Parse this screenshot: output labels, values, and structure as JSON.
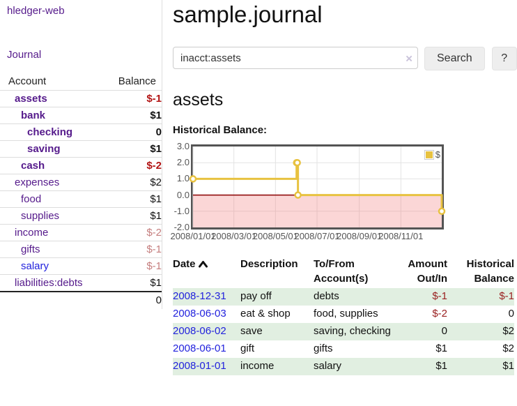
{
  "app": {
    "brand": "hledger-web"
  },
  "header": {
    "title": "sample.journal"
  },
  "search": {
    "value": "inacct:assets",
    "clear_icon": "×",
    "button_label": "Search",
    "help_label": "?"
  },
  "sidebar": {
    "journal_link": "Journal",
    "accounts_table": {
      "headers": [
        "Account",
        "Balance"
      ],
      "rows": [
        {
          "account": "assets",
          "indent": 1,
          "bold": true,
          "blue": false,
          "balance": "$-1",
          "balance_class": "neg-strong"
        },
        {
          "account": "bank",
          "indent": 2,
          "bold": true,
          "blue": false,
          "balance": "$1",
          "balance_class": ""
        },
        {
          "account": "checking",
          "indent": 3,
          "bold": true,
          "blue": false,
          "balance": "0",
          "balance_class": ""
        },
        {
          "account": "saving",
          "indent": 3,
          "bold": true,
          "blue": false,
          "balance": "$1",
          "balance_class": ""
        },
        {
          "account": "cash",
          "indent": 2,
          "bold": true,
          "blue": false,
          "balance": "$-2",
          "balance_class": "neg-strong"
        },
        {
          "account": "expenses",
          "indent": 1,
          "bold": false,
          "blue": false,
          "balance": "$2",
          "balance_class": ""
        },
        {
          "account": "food",
          "indent": 2,
          "bold": false,
          "blue": false,
          "balance": "$1",
          "balance_class": ""
        },
        {
          "account": "supplies",
          "indent": 2,
          "bold": false,
          "blue": false,
          "balance": "$1",
          "balance_class": ""
        },
        {
          "account": "income",
          "indent": 1,
          "bold": false,
          "blue": false,
          "balance": "$-2",
          "balance_class": "neg-soft"
        },
        {
          "account": "gifts",
          "indent": 2,
          "bold": false,
          "blue": false,
          "balance": "$-1",
          "balance_class": "neg-soft"
        },
        {
          "account": "salary",
          "indent": 2,
          "bold": false,
          "blue": true,
          "balance": "$-1",
          "balance_class": "neg-soft"
        },
        {
          "account": "liabilities:debts",
          "indent": 1,
          "bold": false,
          "blue": false,
          "balance": "$1",
          "balance_class": ""
        }
      ],
      "total": "0"
    }
  },
  "main": {
    "account_title": "assets",
    "chart_label": "Historical Balance:"
  },
  "chart_data": {
    "type": "line",
    "step": true,
    "title": "Historical Balance",
    "x_type": "date",
    "xlim": [
      "2008-01-01",
      "2008-12-31"
    ],
    "ylim": [
      -2,
      3
    ],
    "grid": true,
    "legend_position": "top-right",
    "x_ticks": [
      {
        "label": "2008/01/01",
        "date": "2008-01-01"
      },
      {
        "label": "2008/03/01",
        "date": "2008-03-01"
      },
      {
        "label": "2008/05/01",
        "date": "2008-05-01"
      },
      {
        "label": "2008/07/01",
        "date": "2008-07-01"
      },
      {
        "label": "2008/09/01",
        "date": "2008-09-01"
      },
      {
        "label": "2008/11/01",
        "date": "2008-11-01"
      }
    ],
    "y_ticks": [
      {
        "label": "3.0",
        "value": 3
      },
      {
        "label": "2.0",
        "value": 2
      },
      {
        "label": "1.0",
        "value": 1
      },
      {
        "label": "0.0",
        "value": 0
      },
      {
        "label": "-1.0",
        "value": -1
      },
      {
        "label": "-2.0",
        "value": -2
      }
    ],
    "series": [
      {
        "name": "$",
        "color": "#e8c240",
        "points": [
          [
            "2008-01-01",
            1
          ],
          [
            "2008-06-01",
            2
          ],
          [
            "2008-06-02",
            2
          ],
          [
            "2008-06-03",
            0
          ],
          [
            "2008-12-31",
            -1
          ]
        ]
      }
    ],
    "negative_region_fill": "#fbdada",
    "zero_line_color": "#8b0000"
  },
  "register_table": {
    "headers": {
      "date": "Date",
      "description": "Description",
      "accounts": "To/From Account(s)",
      "amount": "Amount Out/In",
      "balance": "Historical Balance"
    },
    "rows": [
      {
        "date": "2008-12-31",
        "description": "pay off",
        "accounts": "debts",
        "amount": "$-1",
        "amount_negative": true,
        "balance": "$-1",
        "balance_negative": true
      },
      {
        "date": "2008-06-03",
        "description": "eat & shop",
        "accounts": "food, supplies",
        "amount": "$-2",
        "amount_negative": true,
        "balance": "0",
        "balance_negative": false
      },
      {
        "date": "2008-06-02",
        "description": "save",
        "accounts": "saving, checking",
        "amount": "0",
        "amount_negative": false,
        "balance": "$2",
        "balance_negative": false
      },
      {
        "date": "2008-06-01",
        "description": "gift",
        "accounts": "gifts",
        "amount": "$1",
        "amount_negative": false,
        "balance": "$2",
        "balance_negative": false
      },
      {
        "date": "2008-01-01",
        "description": "income",
        "accounts": "salary",
        "amount": "$1",
        "amount_negative": false,
        "balance": "$1",
        "balance_negative": false
      }
    ]
  },
  "colors": {
    "link_purple": "#551a8b",
    "link_blue": "#2222dd",
    "negative_strong": "#b21414",
    "negative_soft": "#c57e7e",
    "negative_table": "#9a2121",
    "row_green": "#e1efe1",
    "series_gold": "#e8c240",
    "chart_text": "#545454",
    "chart_border": "#545454",
    "zero_line": "#8b0000",
    "negative_fill": "#fbdada",
    "button_bg": "#eeeeee",
    "divider": "#dddddd"
  }
}
